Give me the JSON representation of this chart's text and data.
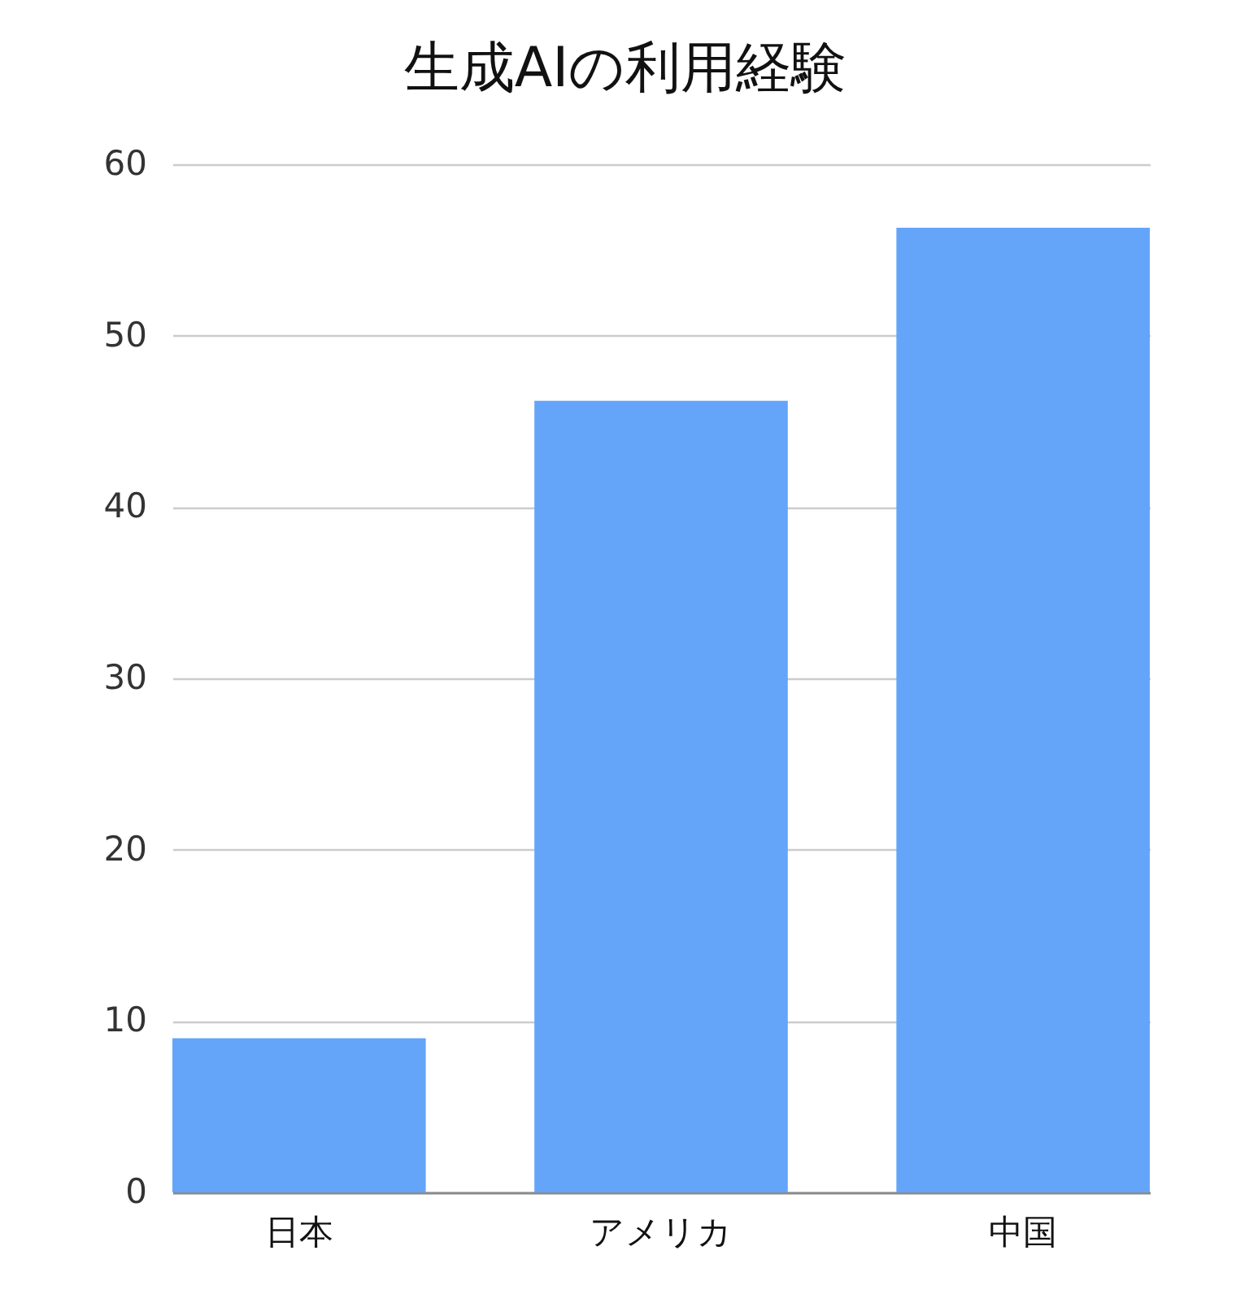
{
  "chart_data": {
    "type": "bar",
    "title": "生成AIの利用経験",
    "categories": [
      "日本",
      "アメリカ",
      "中国"
    ],
    "values": [
      9,
      46.2,
      56.3
    ],
    "color": "#64a5f9",
    "ylim": [
      0,
      60
    ],
    "yticks": [
      0,
      10,
      20,
      30,
      40,
      50,
      60
    ],
    "grid": "y"
  }
}
